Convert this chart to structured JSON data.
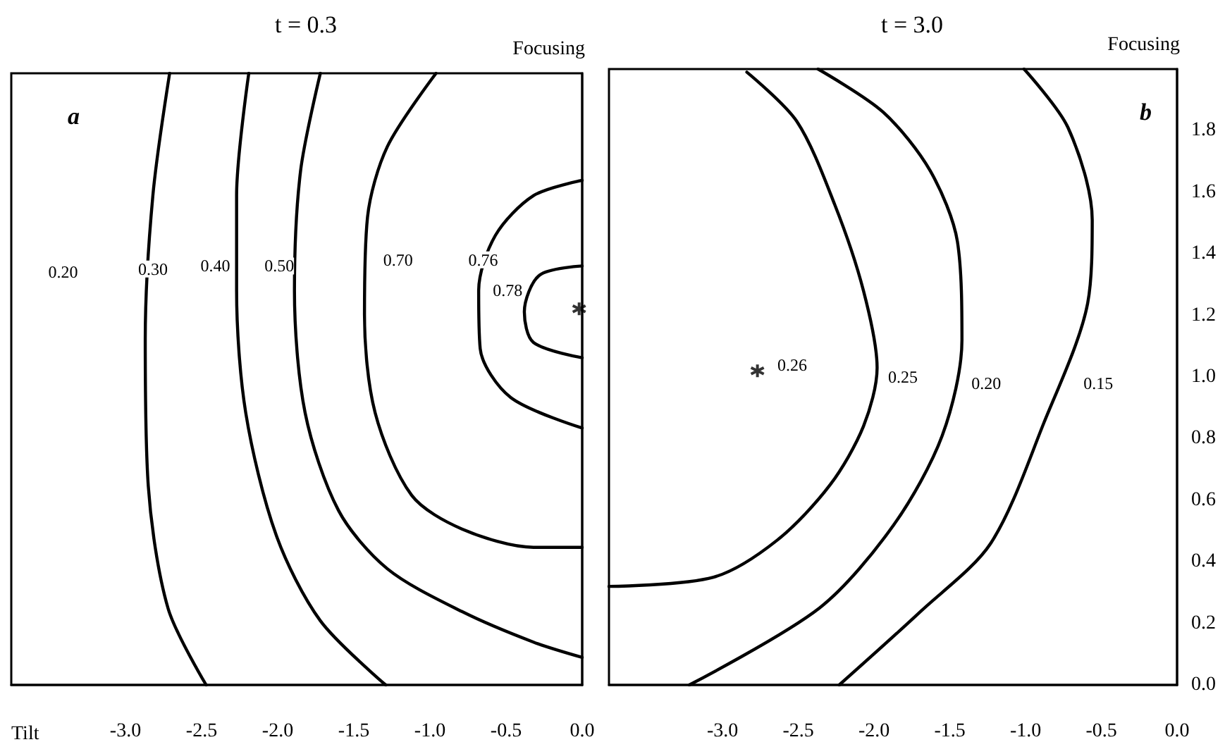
{
  "chart_data": [
    {
      "type": "line",
      "title": "t = 0.3",
      "xlabel": "Tilt",
      "ylabel": "Focusing",
      "xlim": [
        -3.75,
        0
      ],
      "ylim": [
        0,
        2
      ],
      "xticks": [
        {
          "value": -3,
          "label": "-3.0"
        },
        {
          "value": -2.5,
          "label": "-2.5"
        },
        {
          "value": -2,
          "label": "-2.0"
        },
        {
          "value": -1.5,
          "label": "-1.5"
        },
        {
          "value": -1,
          "label": "-1.0"
        },
        {
          "value": -0.5,
          "label": "-0.5"
        },
        {
          "value": 0,
          "label": "0.0"
        }
      ],
      "tick_labels": "x",
      "grid": false,
      "marker": "none",
      "line_style": "solid",
      "series": [
        {
          "color": "#000000",
          "x": [
            -2.71,
            -2.82,
            -2.87,
            -2.85,
            -2.72,
            -2.47
          ],
          "values": [
            2.0,
            1.6,
            1.13,
            0.65,
            0.25,
            0
          ]
        },
        {
          "color": "#000000",
          "x": [
            -2.19,
            -2.27,
            -2.27,
            -2.21,
            -2.01,
            -1.72,
            -1.29
          ],
          "values": [
            2.0,
            1.6,
            1.29,
            0.89,
            0.49,
            0.21,
            0
          ]
        },
        {
          "color": "#000000",
          "x": [
            -1.72,
            -1.85,
            -1.89,
            -1.82,
            -1.6,
            -1.28,
            -0.79,
            -0.32,
            0
          ],
          "values": [
            2.0,
            1.68,
            1.29,
            0.89,
            0.57,
            0.38,
            0.24,
            0.14,
            0.09
          ]
        },
        {
          "color": "#000000",
          "x": [
            -0.96,
            -1.28,
            -1.41,
            -1.43,
            -1.36,
            -1.12,
            -0.79,
            -0.32,
            0
          ],
          "values": [
            2.0,
            1.76,
            1.53,
            1.21,
            0.89,
            0.62,
            0.51,
            0.45,
            0.45
          ]
        },
        {
          "color": "#000000",
          "x": [
            0,
            -0.32,
            -0.57,
            -0.68,
            -0.67,
            -0.47,
            0
          ],
          "values": [
            1.65,
            1.6,
            1.47,
            1.29,
            1.1,
            0.94,
            0.84
          ]
        },
        {
          "color": "#000000",
          "x": [
            0,
            -0.28,
            -0.38,
            -0.32,
            0
          ],
          "values": [
            1.37,
            1.34,
            1.22,
            1.12,
            1.07
          ]
        },
        {
          "type": "scatter",
          "marker": "cross",
          "color": "#000000",
          "x": [
            -0.02
          ],
          "values": [
            1.23
          ]
        }
      ],
      "annotations": [
        {
          "text": "0.20",
          "x": -3.41,
          "y": 1.35
        },
        {
          "text": "0.30",
          "x": -2.82,
          "y": 1.36
        },
        {
          "text": "0.40",
          "x": -2.41,
          "y": 1.37
        },
        {
          "text": "0.50",
          "x": -1.99,
          "y": 1.37
        },
        {
          "text": "0.70",
          "x": -1.21,
          "y": 1.39
        },
        {
          "text": "0.76",
          "x": -0.65,
          "y": 1.39
        },
        {
          "text": "0.78",
          "x": -0.49,
          "y": 1.29
        },
        "a"
      ]
    },
    {
      "type": "line",
      "title": "t = 3.0",
      "ylabel": "Focusing",
      "xlim": [
        -3.75,
        0
      ],
      "ylim": [
        0,
        2
      ],
      "xticks": [
        {
          "value": -3,
          "label": "-3.0"
        },
        {
          "value": -2.5,
          "label": "-2.5"
        },
        {
          "value": -2,
          "label": "-2.0"
        },
        {
          "value": -1.5,
          "label": "-1.5"
        },
        {
          "value": -1,
          "label": "-1.0"
        },
        {
          "value": -0.5,
          "label": "-0.5"
        },
        {
          "value": 0,
          "label": "0.0"
        }
      ],
      "yticks": [
        {
          "value": 0,
          "label": "0.0"
        },
        0.2,
        0.4,
        0.6,
        0.8,
        {
          "value": 1,
          "label": "1.0"
        },
        1.2,
        1.4,
        1.6,
        1.8
      ],
      "grid": false,
      "marker": "none",
      "line_style": "solid",
      "series": [
        {
          "color": "#000000",
          "x": [
            -2.84,
            -2.51,
            -2.26,
            -2.07,
            -1.98,
            -2.07,
            -2.29,
            -2.64,
            -3.06,
            -3.75
          ],
          "values": [
            1.99,
            1.83,
            1.56,
            1.28,
            1.03,
            0.84,
            0.65,
            0.47,
            0.35,
            0.32
          ]
        },
        {
          "color": "#000000",
          "x": [
            -2.37,
            -1.94,
            -1.63,
            -1.45,
            -1.42,
            -1.55,
            -1.87,
            -2.36,
            -3.22
          ],
          "values": [
            2.0,
            1.86,
            1.67,
            1.44,
            1.12,
            0.81,
            0.52,
            0.25,
            0
          ]
        },
        {
          "color": "#000000",
          "x": [
            -1.01,
            -0.72,
            -0.56,
            -0.59,
            -0.88,
            -1.23,
            -1.69,
            -2.23
          ],
          "values": [
            2.0,
            1.81,
            1.51,
            1.24,
            0.85,
            0.46,
            0.24,
            0
          ]
        },
        {
          "type": "scatter",
          "marker": "cross",
          "color": "#000000",
          "x": [
            -2.77
          ],
          "values": [
            1.02
          ]
        }
      ],
      "annotations": [
        {
          "text": "0.26",
          "x": -2.54,
          "y": 1.04
        },
        {
          "text": "0.25",
          "x": -1.81,
          "y": 1.0
        },
        {
          "text": "0.20",
          "x": -1.26,
          "y": 0.98
        },
        {
          "text": "0.15",
          "x": -0.52,
          "y": 0.98
        },
        "b"
      ]
    }
  ]
}
